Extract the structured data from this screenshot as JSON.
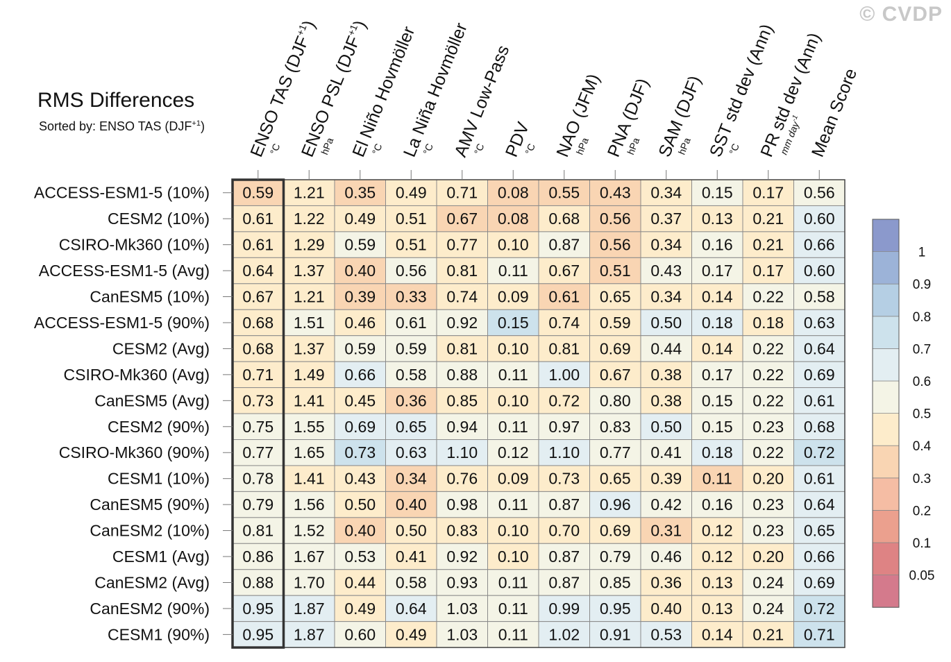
{
  "watermark": "© CVDP",
  "chart_data": {
    "type": "heatmap",
    "title": "RMS Differences",
    "subtitle_prefix": "Sorted by: ENSO TAS (DJF",
    "subtitle_sup": "+1",
    "subtitle_suffix": ")",
    "columns": [
      {
        "label": "ENSO TAS (DJF",
        "sup": "+1",
        "suffix": ")",
        "unit": "°C"
      },
      {
        "label": "ENSO PSL (DJF",
        "sup": "+1",
        "suffix": ")",
        "unit": "hPa"
      },
      {
        "label": "El Niño Hovmöller",
        "sup": "",
        "suffix": "",
        "unit": "°C"
      },
      {
        "label": "La Niña Hovmöller",
        "sup": "",
        "suffix": "",
        "unit": "°C"
      },
      {
        "label": "AMV Low-Pass",
        "sup": "",
        "suffix": "",
        "unit": "°C"
      },
      {
        "label": "PDV",
        "sup": "",
        "suffix": "",
        "unit": "°C"
      },
      {
        "label": "NAO (JFM)",
        "sup": "",
        "suffix": "",
        "unit": "hPa"
      },
      {
        "label": "PNA (DJF)",
        "sup": "",
        "suffix": "",
        "unit": "hPa"
      },
      {
        "label": "SAM (DJF)",
        "sup": "",
        "suffix": "",
        "unit": "hPa"
      },
      {
        "label": "SST std dev (Ann)",
        "sup": "",
        "suffix": "",
        "unit": "°C"
      },
      {
        "label": "PR std dev (Ann)",
        "sup": "",
        "suffix": "",
        "unit": "mm day",
        "unit_sup": "-1"
      },
      {
        "label": "Mean Score",
        "sup": "",
        "suffix": "",
        "unit": ""
      }
    ],
    "rows": [
      "ACCESS-ESM1-5 (10%)",
      "CESM2 (10%)",
      "CSIRO-Mk360 (10%)",
      "ACCESS-ESM1-5 (Avg)",
      "CanESM5 (10%)",
      "ACCESS-ESM1-5 (90%)",
      "CESM2 (Avg)",
      "CSIRO-Mk360 (Avg)",
      "CanESM5 (Avg)",
      "CESM2 (90%)",
      "CSIRO-Mk360 (90%)",
      "CESM1 (10%)",
      "CanESM5 (90%)",
      "CanESM2 (10%)",
      "CESM1 (Avg)",
      "CanESM2 (Avg)",
      "CanESM2 (90%)",
      "CESM1 (90%)"
    ],
    "values": [
      [
        "0.59",
        "1.21",
        "0.35",
        "0.49",
        "0.71",
        "0.08",
        "0.55",
        "0.43",
        "0.34",
        "0.15",
        "0.17",
        "0.56"
      ],
      [
        "0.61",
        "1.22",
        "0.49",
        "0.51",
        "0.67",
        "0.08",
        "0.68",
        "0.56",
        "0.37",
        "0.13",
        "0.21",
        "0.60"
      ],
      [
        "0.61",
        "1.29",
        "0.59",
        "0.51",
        "0.77",
        "0.10",
        "0.87",
        "0.56",
        "0.34",
        "0.16",
        "0.21",
        "0.66"
      ],
      [
        "0.64",
        "1.37",
        "0.40",
        "0.56",
        "0.81",
        "0.11",
        "0.67",
        "0.51",
        "0.43",
        "0.17",
        "0.17",
        "0.60"
      ],
      [
        "0.67",
        "1.21",
        "0.39",
        "0.33",
        "0.74",
        "0.09",
        "0.61",
        "0.65",
        "0.34",
        "0.14",
        "0.22",
        "0.58"
      ],
      [
        "0.68",
        "1.51",
        "0.46",
        "0.61",
        "0.92",
        "0.15",
        "0.74",
        "0.59",
        "0.50",
        "0.18",
        "0.18",
        "0.63"
      ],
      [
        "0.68",
        "1.37",
        "0.59",
        "0.59",
        "0.81",
        "0.10",
        "0.81",
        "0.69",
        "0.44",
        "0.14",
        "0.22",
        "0.64"
      ],
      [
        "0.71",
        "1.49",
        "0.66",
        "0.58",
        "0.88",
        "0.11",
        "1.00",
        "0.67",
        "0.38",
        "0.17",
        "0.22",
        "0.69"
      ],
      [
        "0.73",
        "1.41",
        "0.45",
        "0.36",
        "0.85",
        "0.10",
        "0.72",
        "0.80",
        "0.38",
        "0.15",
        "0.22",
        "0.61"
      ],
      [
        "0.75",
        "1.55",
        "0.69",
        "0.65",
        "0.94",
        "0.11",
        "0.97",
        "0.83",
        "0.50",
        "0.15",
        "0.23",
        "0.68"
      ],
      [
        "0.77",
        "1.65",
        "0.73",
        "0.63",
        "1.10",
        "0.12",
        "1.10",
        "0.77",
        "0.41",
        "0.18",
        "0.22",
        "0.72"
      ],
      [
        "0.78",
        "1.41",
        "0.43",
        "0.34",
        "0.76",
        "0.09",
        "0.73",
        "0.65",
        "0.39",
        "0.11",
        "0.20",
        "0.61"
      ],
      [
        "0.79",
        "1.56",
        "0.50",
        "0.40",
        "0.98",
        "0.11",
        "0.87",
        "0.96",
        "0.42",
        "0.16",
        "0.23",
        "0.64"
      ],
      [
        "0.81",
        "1.52",
        "0.40",
        "0.50",
        "0.83",
        "0.10",
        "0.70",
        "0.69",
        "0.31",
        "0.12",
        "0.23",
        "0.65"
      ],
      [
        "0.86",
        "1.67",
        "0.53",
        "0.41",
        "0.92",
        "0.10",
        "0.87",
        "0.79",
        "0.46",
        "0.12",
        "0.20",
        "0.66"
      ],
      [
        "0.88",
        "1.70",
        "0.44",
        "0.58",
        "0.93",
        "0.11",
        "0.87",
        "0.85",
        "0.36",
        "0.13",
        "0.24",
        "0.69"
      ],
      [
        "0.95",
        "1.87",
        "0.49",
        "0.64",
        "1.03",
        "0.11",
        "0.99",
        "0.95",
        "0.40",
        "0.13",
        "0.24",
        "0.72"
      ],
      [
        "0.95",
        "1.87",
        "0.60",
        "0.49",
        "1.03",
        "0.11",
        "1.02",
        "0.91",
        "0.53",
        "0.14",
        "0.21",
        "0.71"
      ]
    ],
    "colorbar": {
      "levels": [
        0.05,
        0.1,
        0.2,
        0.3,
        0.4,
        0.5,
        0.6,
        0.7,
        0.8,
        0.9,
        1
      ],
      "tick_labels": [
        "0.05",
        "0.1",
        "0.2",
        "0.3",
        "0.4",
        "0.5",
        "0.6",
        "0.7",
        "0.8",
        "0.9",
        "1"
      ],
      "colors": [
        "#d47a8c",
        "#de8384",
        "#eba08e",
        "#f5bda4",
        "#f9d5b3",
        "#fdeccb",
        "#f4f4e6",
        "#e3eef2",
        "#cde2ec",
        "#b5cfe4",
        "#9cb3d8",
        "#8b99cc"
      ]
    },
    "highlighted_column": 0
  }
}
